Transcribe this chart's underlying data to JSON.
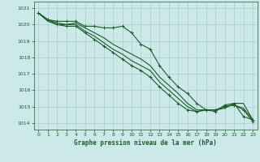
{
  "title": "Graphe pression niveau de la mer (hPa)",
  "bg_color": "#cde8e8",
  "grid_color": "#aacece",
  "line_color": "#1a5c2a",
  "tick_color": "#1a5c2a",
  "x_ticks": [
    0,
    1,
    2,
    3,
    4,
    5,
    6,
    7,
    8,
    9,
    10,
    11,
    12,
    13,
    14,
    15,
    16,
    17,
    18,
    19,
    20,
    21,
    22,
    23
  ],
  "y_ticks": [
    1014,
    1015,
    1016,
    1017,
    1018,
    1019,
    1020,
    1021
  ],
  "ylim": [
    1013.6,
    1021.4
  ],
  "xlim": [
    -0.5,
    23.5
  ],
  "series": [
    [
      1020.7,
      1020.3,
      1020.2,
      1020.2,
      1020.2,
      1019.9,
      1019.9,
      1019.8,
      1019.8,
      1019.9,
      1019.5,
      1018.8,
      1018.5,
      1017.5,
      1016.8,
      1016.2,
      1015.8,
      1015.2,
      1014.8,
      1014.7,
      1015.1,
      1015.2,
      1014.4,
      1014.2
    ],
    [
      1020.7,
      1020.3,
      1020.1,
      1020.0,
      1020.1,
      1019.8,
      1019.5,
      1019.2,
      1018.8,
      1018.5,
      1018.2,
      1017.9,
      1017.5,
      1016.8,
      1016.3,
      1015.8,
      1015.2,
      1014.8,
      1014.8,
      1014.8,
      1014.9,
      1015.2,
      1015.2,
      1014.2
    ],
    [
      1020.7,
      1020.2,
      1020.0,
      1020.0,
      1020.0,
      1019.6,
      1019.3,
      1018.9,
      1018.5,
      1018.2,
      1017.8,
      1017.5,
      1017.2,
      1016.5,
      1016.0,
      1015.5,
      1015.0,
      1014.7,
      1014.8,
      1014.8,
      1015.0,
      1015.1,
      1014.9,
      1014.2
    ],
    [
      1020.7,
      1020.3,
      1020.0,
      1019.9,
      1019.9,
      1019.5,
      1019.1,
      1018.7,
      1018.3,
      1017.9,
      1017.5,
      1017.2,
      1016.8,
      1016.2,
      1015.7,
      1015.2,
      1014.8,
      1014.7,
      1014.8,
      1014.8,
      1015.0,
      1015.1,
      1014.8,
      1014.1
    ]
  ]
}
